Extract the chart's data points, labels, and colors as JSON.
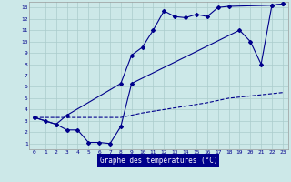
{
  "title": "Graphe des températures (°C)",
  "bg_color": "#cce8e8",
  "line_color": "#00008b",
  "xlim": [
    -0.5,
    23.5
  ],
  "ylim": [
    0.5,
    13.5
  ],
  "xticks": [
    0,
    1,
    2,
    3,
    4,
    5,
    6,
    7,
    8,
    9,
    10,
    11,
    12,
    13,
    14,
    15,
    16,
    17,
    18,
    19,
    20,
    21,
    22,
    23
  ],
  "yticks": [
    1,
    2,
    3,
    4,
    5,
    6,
    7,
    8,
    9,
    10,
    11,
    12,
    13
  ],
  "line1_x": [
    0,
    1,
    2,
    3,
    4,
    5,
    6,
    7,
    8,
    9,
    19,
    20,
    21,
    22,
    23
  ],
  "line1_y": [
    3.3,
    3.0,
    2.7,
    2.2,
    2.2,
    1.1,
    1.1,
    1.0,
    2.5,
    6.3,
    11.0,
    10.0,
    8.0,
    13.2,
    13.3
  ],
  "line2_x": [
    0,
    2,
    3,
    8,
    9,
    10,
    11,
    12,
    13,
    14,
    15,
    16,
    17,
    18,
    22,
    23
  ],
  "line2_y": [
    3.3,
    2.7,
    3.5,
    6.3,
    8.8,
    9.5,
    11.0,
    12.7,
    12.2,
    12.1,
    12.4,
    12.2,
    13.0,
    13.1,
    13.2,
    13.3
  ],
  "line3_x": [
    0,
    3,
    8,
    10,
    12,
    14,
    16,
    18,
    20,
    22,
    23
  ],
  "line3_y": [
    3.3,
    3.3,
    3.3,
    3.7,
    4.0,
    4.3,
    4.6,
    5.0,
    5.2,
    5.4,
    5.5
  ]
}
